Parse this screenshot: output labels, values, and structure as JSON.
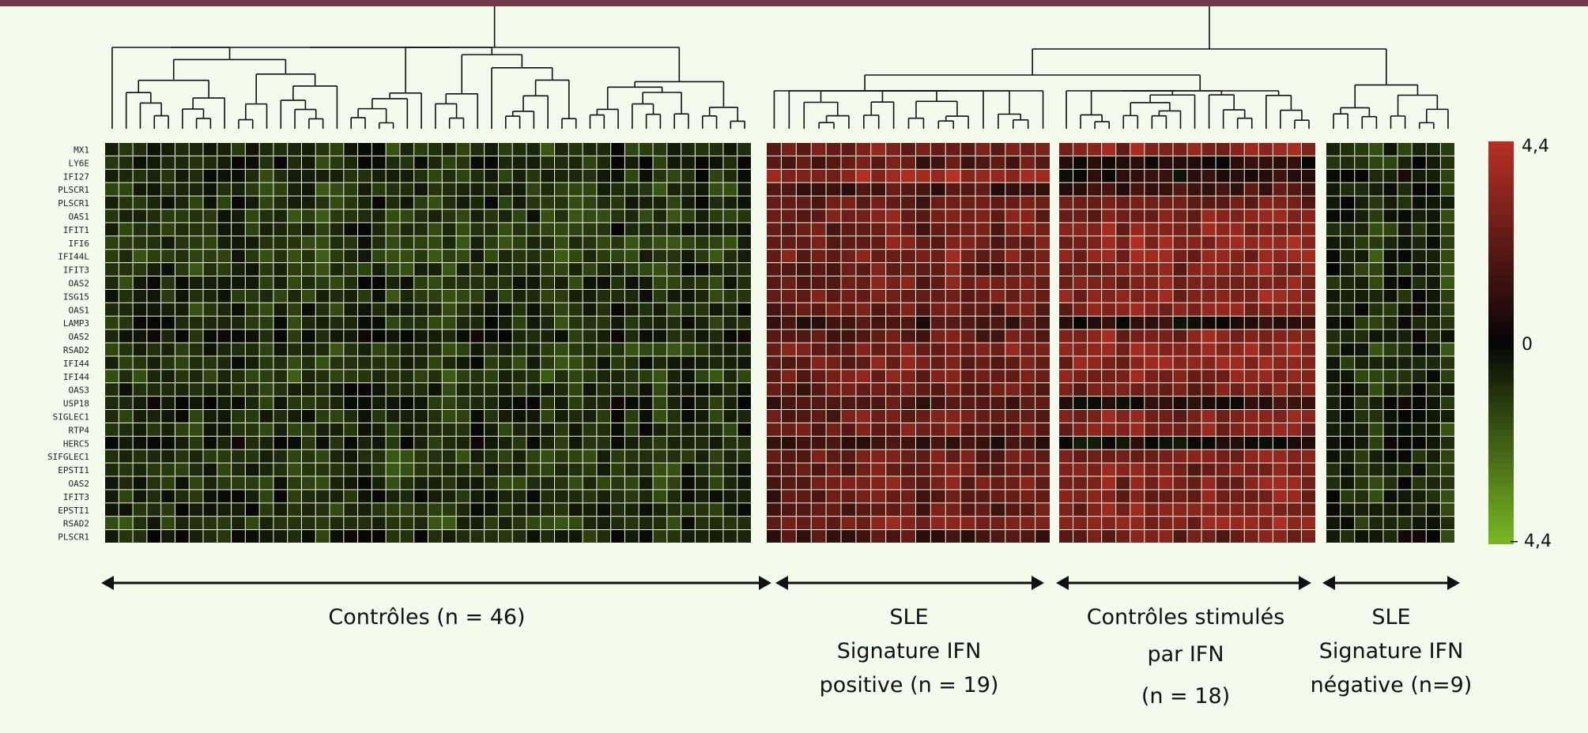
{
  "chart_data": {
    "type": "heatmap",
    "title": "",
    "rows": [
      "MX1",
      "LY6E",
      "IFI27",
      "PLSCR1",
      "PLSCR1",
      "OAS1",
      "IFIT1",
      "IFI6",
      "IFI44L",
      "IFIT3",
      "OAS2",
      "ISG15",
      "OAS1",
      "LAMP3",
      "OAS2",
      "RSAD2",
      "IFI44",
      "IFI44",
      "OAS3",
      "USP18",
      "SIGLEC1",
      "RTP4",
      "HERC5",
      "SIFGLEC1",
      "EPSTI1",
      "OAS2",
      "IFIT3",
      "EPSTI1",
      "RSAD2",
      "PLSCR1"
    ],
    "groups": [
      {
        "name": "controls",
        "label_lines": [
          "Contrôles (n = 46)"
        ],
        "n": 46,
        "row_means": [
          -1.0,
          -0.8,
          -0.9,
          -1.1,
          -1.0,
          -1.2,
          -1.0,
          -1.2,
          -1.3,
          -1.1,
          -0.9,
          -1.1,
          -0.9,
          -0.9,
          -0.6,
          -1.2,
          -1.0,
          -1.2,
          -0.8,
          -0.7,
          -0.9,
          -0.9,
          -0.6,
          -1.1,
          -1.1,
          -1.0,
          -0.8,
          -0.8,
          -1.2,
          -0.7
        ]
      },
      {
        "name": "sle-ifn-positive",
        "label_lines": [
          "SLE",
          "Signature IFN",
          "positive (n = 19)"
        ],
        "n": 19,
        "row_means": [
          2.6,
          2.0,
          3.5,
          1.6,
          2.3,
          2.6,
          2.4,
          2.6,
          2.8,
          2.3,
          2.5,
          2.6,
          2.3,
          1.4,
          2.2,
          2.7,
          2.6,
          2.7,
          2.3,
          1.6,
          2.4,
          2.4,
          1.2,
          2.4,
          2.4,
          2.6,
          2.1,
          2.3,
          2.8,
          1.6
        ]
      },
      {
        "name": "controls-ifn-stimulated",
        "label_lines": [
          "Contrôles stimulés",
          "par IFN",
          "(n = 18)"
        ],
        "n": 18,
        "row_means": [
          3.2,
          0.7,
          0.6,
          1.6,
          2.4,
          2.8,
          3.0,
          3.3,
          3.2,
          2.9,
          3.0,
          3.2,
          3.0,
          0.6,
          3.1,
          3.3,
          3.2,
          3.0,
          2.8,
          0.6,
          2.9,
          3.0,
          0.1,
          2.8,
          2.8,
          2.9,
          2.8,
          3.0,
          3.2,
          2.4
        ]
      },
      {
        "name": "sle-ifn-negative",
        "label_lines": [
          "SLE",
          "Signature IFN",
          "négative (n=9)"
        ],
        "n": 9,
        "row_means": [
          -1.2,
          -1.0,
          -0.5,
          -0.6,
          -0.9,
          -1.0,
          -1.0,
          -1.1,
          -1.1,
          -0.9,
          -1.0,
          -1.0,
          -0.8,
          -0.7,
          -0.7,
          -1.0,
          -1.0,
          -1.0,
          -0.8,
          -0.7,
          -0.9,
          -0.9,
          -0.6,
          -0.9,
          -1.0,
          -1.0,
          -0.9,
          -0.8,
          -1.0,
          -0.7
        ]
      }
    ],
    "colorscale": {
      "min": -4.4,
      "mid": 0,
      "max": 4.4,
      "min_label": "– 4,4",
      "mid_label": "0",
      "max_label": "4,4",
      "low_color": "#7ab824",
      "mid_color": "#050505",
      "high_color": "#b83025"
    },
    "dendrogram": "columns"
  },
  "colors": {
    "background": "#f4faec",
    "top_bar": "#6e3a45"
  }
}
